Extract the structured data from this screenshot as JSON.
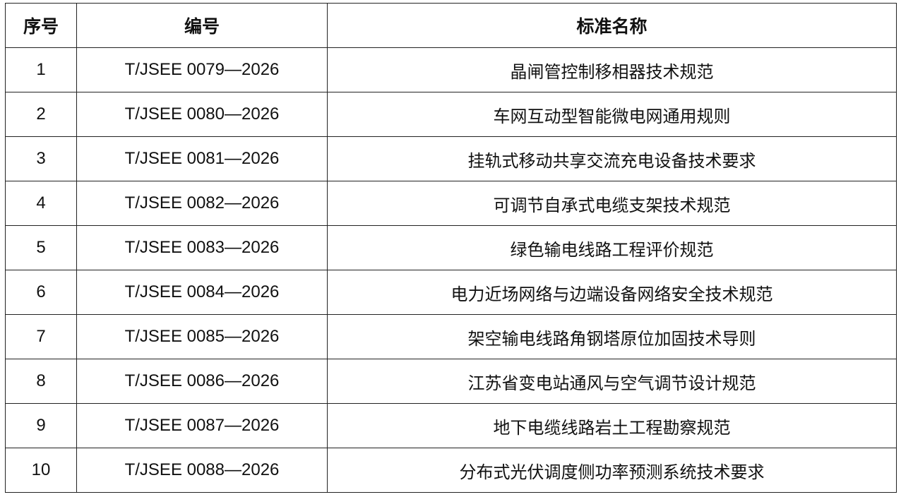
{
  "table": {
    "headers": [
      "序号",
      "编号",
      "标准名称"
    ],
    "rows": [
      {
        "index": "1",
        "code": "T/JSEE 0079—2026",
        "name": "晶闸管控制移相器技术规范"
      },
      {
        "index": "2",
        "code": "T/JSEE 0080—2026",
        "name": "车网互动型智能微电网通用规则"
      },
      {
        "index": "3",
        "code": "T/JSEE 0081—2026",
        "name": "挂轨式移动共享交流充电设备技术要求"
      },
      {
        "index": "4",
        "code": "T/JSEE 0082—2026",
        "name": "可调节自承式电缆支架技术规范"
      },
      {
        "index": "5",
        "code": "T/JSEE 0083—2026",
        "name": "绿色输电线路工程评价规范"
      },
      {
        "index": "6",
        "code": "T/JSEE 0084—2026",
        "name": "电力近场网络与边端设备网络安全技术规范"
      },
      {
        "index": "7",
        "code": "T/JSEE 0085—2026",
        "name": "架空输电线路角钢塔原位加固技术导则"
      },
      {
        "index": "8",
        "code": "T/JSEE 0086—2026",
        "name": "江苏省变电站通风与空气调节设计规范"
      },
      {
        "index": "9",
        "code": "T/JSEE 0087—2026",
        "name": "地下电缆线路岩土工程勘察规范"
      },
      {
        "index": "10",
        "code": "T/JSEE 0088—2026",
        "name": "分布式光伏调度侧功率预测系统技术要求"
      }
    ]
  }
}
